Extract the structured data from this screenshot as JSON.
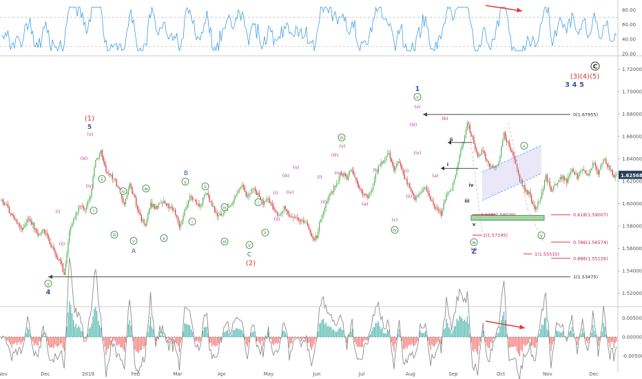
{
  "chart_data": {
    "type": "line",
    "x_axis": {
      "labels": [
        "Nov",
        "Dec",
        "2019",
        "Feb",
        "Mar",
        "Apr",
        "May",
        "Jun",
        "Jul",
        "Aug",
        "Sep",
        "Oct",
        "Nov",
        "Dec"
      ]
    },
    "panels": [
      {
        "name": "rsi-panel",
        "type": "line",
        "ylim": [
          20,
          90
        ],
        "y_ticks": [
          "80.00",
          "60.00",
          "40.00",
          "20.00"
        ],
        "ref_lines": [
          70,
          30
        ]
      },
      {
        "name": "price-panel",
        "type": "candlestick",
        "ylim": [
          1.51,
          1.73
        ],
        "y_ticks": [
          "1.72000",
          "1.70000",
          "1.68000",
          "1.66000",
          "1.64000",
          "1.62000",
          "1.60000",
          "1.58000",
          "1.56000",
          "1.54000",
          "1.52000"
        ],
        "last_price": "1.62568",
        "price_path": [
          [
            0,
            1.602
          ],
          [
            4,
            1.598
          ],
          [
            8,
            1.588
          ],
          [
            12,
            1.584
          ],
          [
            16,
            1.576
          ],
          [
            20,
            1.587
          ],
          [
            24,
            1.581
          ],
          [
            28,
            1.572
          ],
          [
            32,
            1.578
          ],
          [
            36,
            1.568
          ],
          [
            42,
            1.552
          ],
          [
            46,
            1.545
          ],
          [
            48,
            1.536
          ],
          [
            52,
            1.575
          ],
          [
            56,
            1.588
          ],
          [
            60,
            1.598
          ],
          [
            64,
            1.594
          ],
          [
            68,
            1.608
          ],
          [
            72,
            1.638
          ],
          [
            76,
            1.647
          ],
          [
            80,
            1.63
          ],
          [
            86,
            1.622
          ],
          [
            90,
            1.612
          ],
          [
            94,
            1.598
          ],
          [
            98,
            1.616
          ],
          [
            102,
            1.604
          ],
          [
            106,
            1.588
          ],
          [
            110,
            1.58
          ],
          [
            114,
            1.6
          ],
          [
            118,
            1.596
          ],
          [
            124,
            1.603
          ],
          [
            128,
            1.597
          ],
          [
            132,
            1.594
          ],
          [
            136,
            1.579
          ],
          [
            140,
            1.594
          ],
          [
            144,
            1.606
          ],
          [
            148,
            1.602
          ],
          [
            152,
            1.597
          ],
          [
            156,
            1.61
          ],
          [
            160,
            1.602
          ],
          [
            164,
            1.591
          ],
          [
            168,
            1.589
          ],
          [
            172,
            1.596
          ],
          [
            176,
            1.601
          ],
          [
            180,
            1.611
          ],
          [
            184,
            1.616
          ],
          [
            188,
            1.606
          ],
          [
            192,
            1.613
          ],
          [
            196,
            1.608
          ],
          [
            200,
            1.6
          ],
          [
            204,
            1.604
          ],
          [
            208,
            1.594
          ],
          [
            212,
            1.589
          ],
          [
            216,
            1.596
          ],
          [
            220,
            1.587
          ],
          [
            224,
            1.588
          ],
          [
            228,
            1.583
          ],
          [
            232,
            1.585
          ],
          [
            236,
            1.574
          ],
          [
            238,
            1.567
          ],
          [
            241,
            1.571
          ],
          [
            244,
            1.587
          ],
          [
            248,
            1.6
          ],
          [
            252,
            1.61
          ],
          [
            256,
            1.618
          ],
          [
            260,
            1.628
          ],
          [
            264,
            1.623
          ],
          [
            268,
            1.63
          ],
          [
            272,
            1.618
          ],
          [
            276,
            1.608
          ],
          [
            280,
            1.606
          ],
          [
            284,
            1.616
          ],
          [
            288,
            1.634
          ],
          [
            292,
            1.639
          ],
          [
            296,
            1.646
          ],
          [
            300,
            1.631
          ],
          [
            304,
            1.637
          ],
          [
            308,
            1.622
          ],
          [
            312,
            1.615
          ],
          [
            316,
            1.605
          ],
          [
            320,
            1.61
          ],
          [
            324,
            1.616
          ],
          [
            328,
            1.602
          ],
          [
            332,
            1.596
          ],
          [
            336,
            1.591
          ],
          [
            340,
            1.608
          ],
          [
            344,
            1.614
          ],
          [
            348,
            1.632
          ],
          [
            352,
            1.651
          ],
          [
            354,
            1.662
          ],
          [
            356,
            1.672
          ],
          [
            360,
            1.658
          ],
          [
            364,
            1.642
          ],
          [
            368,
            1.648
          ],
          [
            372,
            1.634
          ],
          [
            376,
            1.632
          ],
          [
            380,
            1.636
          ],
          [
            384,
            1.662
          ],
          [
            388,
            1.652
          ],
          [
            392,
            1.64
          ],
          [
            396,
            1.622
          ],
          [
            400,
            1.612
          ],
          [
            404,
            1.608
          ],
          [
            406,
            1.598
          ],
          [
            408,
            1.594
          ],
          [
            412,
            1.606
          ],
          [
            416,
            1.624
          ],
          [
            420,
            1.612
          ],
          [
            424,
            1.618
          ],
          [
            428,
            1.624
          ],
          [
            432,
            1.62
          ],
          [
            436,
            1.63
          ],
          [
            440,
            1.624
          ],
          [
            444,
            1.632
          ],
          [
            448,
            1.626
          ],
          [
            452,
            1.636
          ],
          [
            456,
            1.628
          ],
          [
            460,
            1.64
          ],
          [
            464,
            1.632
          ],
          [
            468,
            1.624
          ],
          [
            470,
            1.626
          ]
        ]
      },
      {
        "name": "oscillator-panel",
        "type": "histogram",
        "ylim": [
          -0.0075,
          0.0075
        ],
        "y_ticks": [
          "0.00500",
          "0.00000",
          "-0.00500"
        ]
      }
    ],
    "fib_levels": [
      {
        "label": "0(1.67955)",
        "value": 1.67955
      },
      {
        "label": "1(1.53475)",
        "value": 1.53475
      },
      {
        "label": "1.618(1.59029)",
        "value": 1.59029
      },
      {
        "label": "2(1.57195)",
        "value": 1.57195
      },
      {
        "label": "0.618(1.59007)",
        "value": 1.59007
      },
      {
        "label": "0.786(1.56574)",
        "value": 1.56574
      },
      {
        "label": "1(1.55515)",
        "value": 1.55515
      },
      {
        "label": "0.886(1.55126)",
        "value": 1.55126
      }
    ],
    "wave_labels": [
      {
        "text": "(1)",
        "color": "#d0392b"
      },
      {
        "text": "5",
        "color": "#3a57a7"
      },
      {
        "text": "4",
        "color": "#3a57a7"
      },
      {
        "text": "A",
        "color": "#3a57a7"
      },
      {
        "text": "B",
        "color": "#3a57a7"
      },
      {
        "text": "C",
        "color": "#3a57a7"
      },
      {
        "text": "(2)",
        "color": "#d0392b"
      },
      {
        "text": "1",
        "color": "#3a57a7"
      },
      {
        "text": "Z",
        "color": "#3a57a7"
      },
      {
        "text": "(3)(4)(5)",
        "color": "#d0392b"
      },
      {
        "text": "3 4 5",
        "color": "#3a57a7"
      },
      {
        "text": "C",
        "color": "#222222"
      }
    ]
  }
}
